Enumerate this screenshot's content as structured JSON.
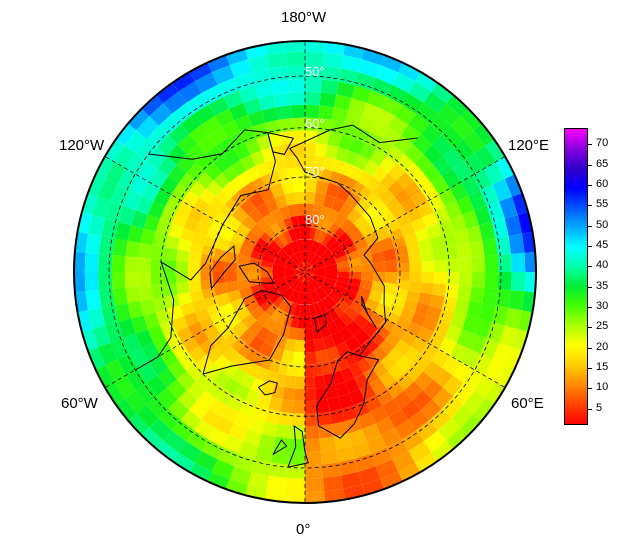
{
  "map": {
    "projection": "north-polar-stereographic",
    "lon_labels": {
      "top": "180°W",
      "bottom": "0°",
      "upper_left": "120°W",
      "upper_right": "120°E",
      "lower_left": "60°W",
      "lower_right": "60°E"
    },
    "lat_labels": [
      "50°",
      "60°",
      "70°",
      "80°"
    ],
    "latitude_circles": [
      50,
      60,
      70,
      80
    ],
    "meridians": [
      0,
      60,
      120,
      180,
      240,
      300
    ]
  },
  "colorbar": {
    "ticks": [
      "70",
      "65",
      "60",
      "55",
      "50",
      "45",
      "40",
      "35",
      "30",
      "25",
      "20",
      "15",
      "10",
      "5"
    ],
    "range": [
      1,
      74
    ],
    "palette": [
      "#ff0000",
      "#ff4400",
      "#ff8800",
      "#ffcc00",
      "#ffff00",
      "#aaff00",
      "#44ff00",
      "#00ee33",
      "#00ffaa",
      "#00ffff",
      "#00aaff",
      "#0055ff",
      "#0000ff",
      "#3300cc",
      "#8800dd",
      "#ff00ff"
    ]
  }
}
